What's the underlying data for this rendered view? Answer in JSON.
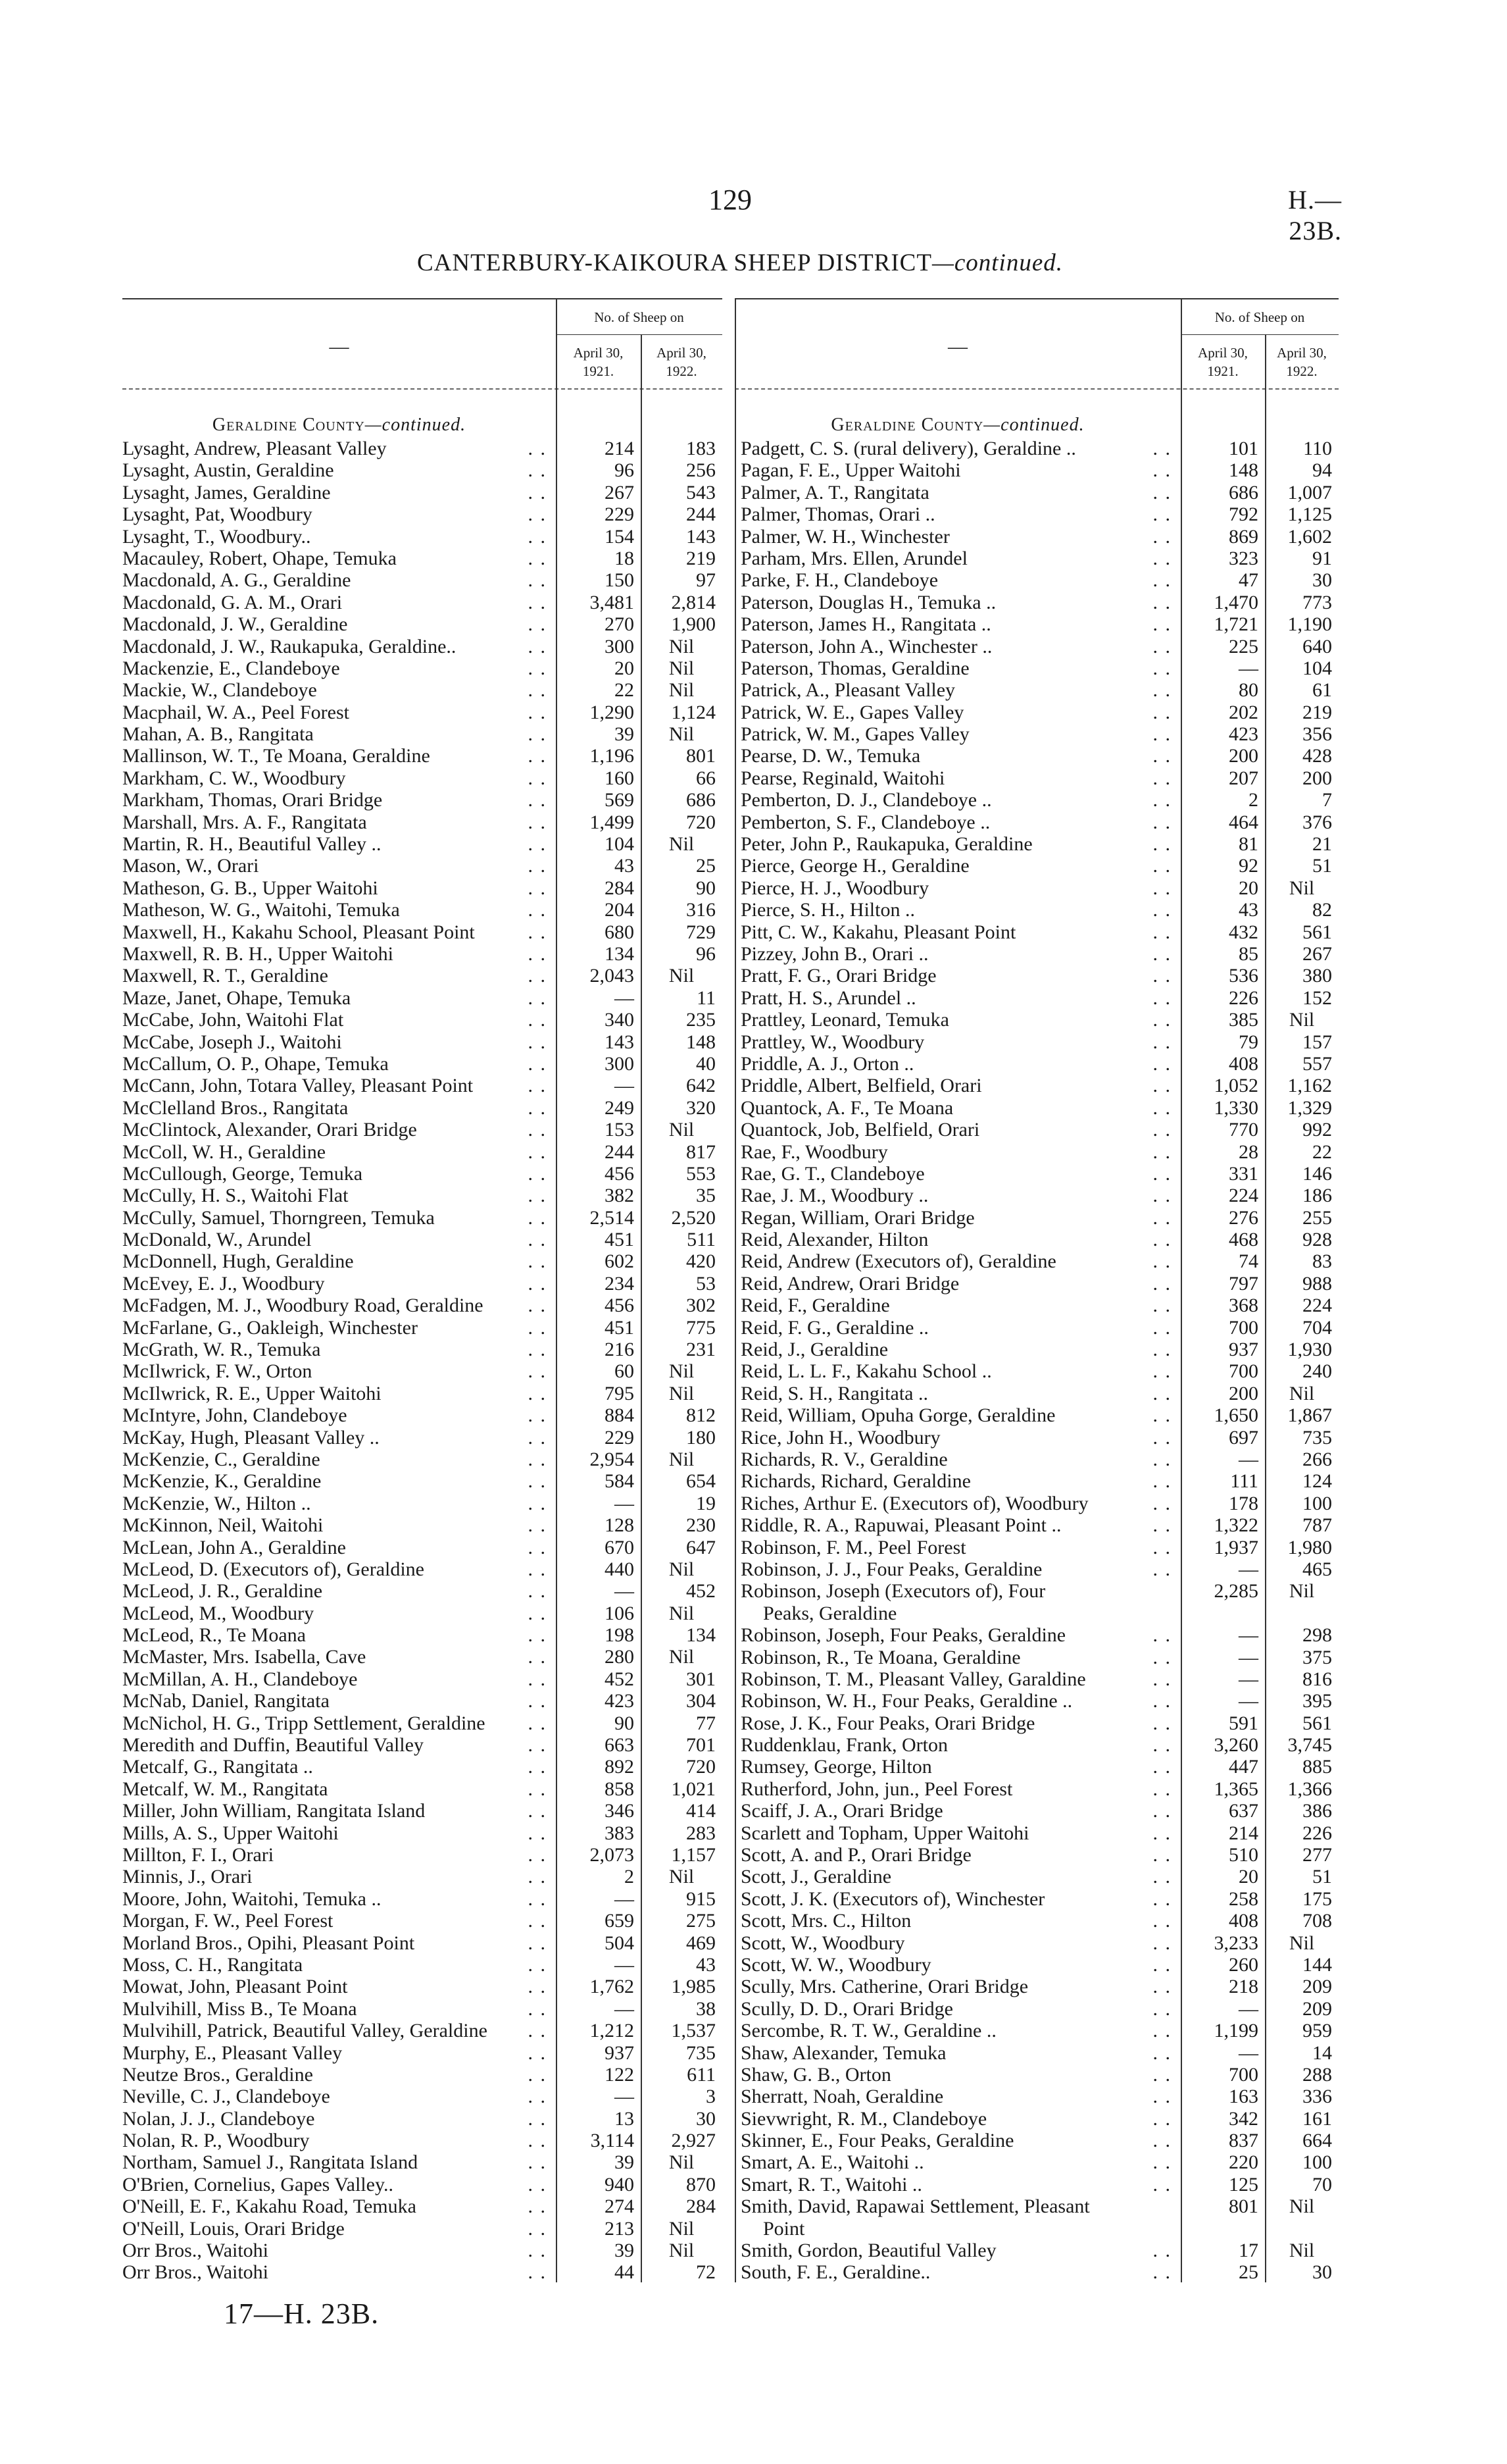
{
  "header": {
    "page_number": "129",
    "document_ref": "H.—23B.",
    "title": "CANTERBURY-KAIKOURA SHEEP DISTRICT",
    "title_suffix": "—continued."
  },
  "table_header": {
    "name_column": "—",
    "group_label": "No. of Sheep on",
    "col1_line1": "April 30,",
    "col1_line2": "1921.",
    "col2_line1": "April 30,",
    "col2_line2": "1922."
  },
  "left": {
    "county_name": "Geraldine County",
    "county_suffix": "—continued.",
    "rows": [
      {
        "name": "Lysaght, Andrew, Pleasant Valley",
        "y1921": "214",
        "y1922": "183"
      },
      {
        "name": "Lysaght, Austin, Geraldine",
        "y1921": "96",
        "y1922": "256"
      },
      {
        "name": "Lysaght, James, Geraldine",
        "y1921": "267",
        "y1922": "543"
      },
      {
        "name": "Lysaght, Pat, Woodbury",
        "y1921": "229",
        "y1922": "244"
      },
      {
        "name": "Lysaght, T., Woodbury..",
        "y1921": "154",
        "y1922": "143"
      },
      {
        "name": "Macauley, Robert, Ohape, Temuka",
        "y1921": "18",
        "y1922": "219"
      },
      {
        "name": "Macdonald, A. G., Geraldine",
        "y1921": "150",
        "y1922": "97"
      },
      {
        "name": "Macdonald, G. A. M., Orari",
        "y1921": "3,481",
        "y1922": "2,814"
      },
      {
        "name": "Macdonald, J. W., Geraldine",
        "y1921": "270",
        "y1922": "1,900"
      },
      {
        "name": "Macdonald, J. W., Raukapuka, Geraldine..",
        "y1921": "300",
        "y1922": "Nil"
      },
      {
        "name": "Mackenzie, E., Clandeboye",
        "y1921": "20",
        "y1922": "Nil"
      },
      {
        "name": "Mackie, W., Clandeboye",
        "y1921": "22",
        "y1922": "Nil"
      },
      {
        "name": "Macphail, W. A., Peel Forest",
        "y1921": "1,290",
        "y1922": "1,124"
      },
      {
        "name": "Mahan, A. B., Rangitata",
        "y1921": "39",
        "y1922": "Nil"
      },
      {
        "name": "Mallinson, W. T., Te Moana, Geraldine",
        "y1921": "1,196",
        "y1922": "801"
      },
      {
        "name": "Markham, C. W., Woodbury",
        "y1921": "160",
        "y1922": "66"
      },
      {
        "name": "Markham, Thomas, Orari Bridge",
        "y1921": "569",
        "y1922": "686"
      },
      {
        "name": "Marshall, Mrs. A. F., Rangitata",
        "y1921": "1,499",
        "y1922": "720"
      },
      {
        "name": "Martin, R. H., Beautiful Valley ..",
        "y1921": "104",
        "y1922": "Nil"
      },
      {
        "name": "Mason, W., Orari",
        "y1921": "43",
        "y1922": "25"
      },
      {
        "name": "Matheson, G. B., Upper Waitohi",
        "y1921": "284",
        "y1922": "90"
      },
      {
        "name": "Matheson, W. G., Waitohi, Temuka",
        "y1921": "204",
        "y1922": "316"
      },
      {
        "name": "Maxwell, H., Kakahu School, Pleasant Point",
        "y1921": "680",
        "y1922": "729"
      },
      {
        "name": "Maxwell, R. B. H., Upper Waitohi",
        "y1921": "134",
        "y1922": "96"
      },
      {
        "name": "Maxwell, R. T., Geraldine",
        "y1921": "2,043",
        "y1922": "Nil"
      },
      {
        "name": "Maze, Janet, Ohape, Temuka",
        "y1921": "—",
        "y1922": "11"
      },
      {
        "name": "McCabe, John, Waitohi Flat",
        "y1921": "340",
        "y1922": "235"
      },
      {
        "name": "McCabe, Joseph J., Waitohi",
        "y1921": "143",
        "y1922": "148"
      },
      {
        "name": "McCallum, O. P., Ohape, Temuka",
        "y1921": "300",
        "y1922": "40"
      },
      {
        "name": "McCann, John, Totara Valley, Pleasant Point",
        "y1921": "—",
        "y1922": "642"
      },
      {
        "name": "McClelland Bros., Rangitata",
        "y1921": "249",
        "y1922": "320"
      },
      {
        "name": "McClintock, Alexander, Orari Bridge",
        "y1921": "153",
        "y1922": "Nil"
      },
      {
        "name": "McColl, W. H., Geraldine",
        "y1921": "244",
        "y1922": "817"
      },
      {
        "name": "McCullough, George, Temuka",
        "y1921": "456",
        "y1922": "553"
      },
      {
        "name": "McCully, H. S., Waitohi Flat",
        "y1921": "382",
        "y1922": "35"
      },
      {
        "name": "McCully, Samuel, Thorngreen, Temuka",
        "y1921": "2,514",
        "y1922": "2,520"
      },
      {
        "name": "McDonald, W., Arundel",
        "y1921": "451",
        "y1922": "511"
      },
      {
        "name": "McDonnell, Hugh, Geraldine",
        "y1921": "602",
        "y1922": "420"
      },
      {
        "name": "McEvey, E. J., Woodbury",
        "y1921": "234",
        "y1922": "53"
      },
      {
        "name": "McFadgen, M. J., Woodbury Road, Geraldine",
        "y1921": "456",
        "y1922": "302"
      },
      {
        "name": "McFarlane, G., Oakleigh, Winchester",
        "y1921": "451",
        "y1922": "775"
      },
      {
        "name": "McGrath, W. R., Temuka",
        "y1921": "216",
        "y1922": "231"
      },
      {
        "name": "McIlwrick, F. W., Orton",
        "y1921": "60",
        "y1922": "Nil"
      },
      {
        "name": "McIlwrick, R. E., Upper Waitohi",
        "y1921": "795",
        "y1922": "Nil"
      },
      {
        "name": "McIntyre, John, Clandeboye",
        "y1921": "884",
        "y1922": "812"
      },
      {
        "name": "McKay, Hugh, Pleasant Valley ..",
        "y1921": "229",
        "y1922": "180"
      },
      {
        "name": "McKenzie, C., Geraldine",
        "y1921": "2,954",
        "y1922": "Nil"
      },
      {
        "name": "McKenzie, K., Geraldine",
        "y1921": "584",
        "y1922": "654"
      },
      {
        "name": "McKenzie, W., Hilton ..",
        "y1921": "—",
        "y1922": "19"
      },
      {
        "name": "McKinnon, Neil, Waitohi",
        "y1921": "128",
        "y1922": "230"
      },
      {
        "name": "McLean, John A., Geraldine",
        "y1921": "670",
        "y1922": "647"
      },
      {
        "name": "McLeod, D. (Executors of), Geraldine",
        "y1921": "440",
        "y1922": "Nil"
      },
      {
        "name": "McLeod, J. R., Geraldine",
        "y1921": "—",
        "y1922": "452"
      },
      {
        "name": "McLeod, M., Woodbury",
        "y1921": "106",
        "y1922": "Nil"
      },
      {
        "name": "McLeod, R., Te Moana",
        "y1921": "198",
        "y1922": "134"
      },
      {
        "name": "McMaster, Mrs. Isabella, Cave",
        "y1921": "280",
        "y1922": "Nil"
      },
      {
        "name": "McMillan, A. H., Clandeboye",
        "y1921": "452",
        "y1922": "301"
      },
      {
        "name": "McNab, Daniel, Rangitata",
        "y1921": "423",
        "y1922": "304"
      },
      {
        "name": "McNichol, H. G., Tripp Settlement, Geraldine",
        "y1921": "90",
        "y1922": "77"
      },
      {
        "name": "Meredith and Duffin, Beautiful Valley",
        "y1921": "663",
        "y1922": "701"
      },
      {
        "name": "Metcalf, G., Rangitata ..",
        "y1921": "892",
        "y1922": "720"
      },
      {
        "name": "Metcalf, W. M., Rangitata",
        "y1921": "858",
        "y1922": "1,021"
      },
      {
        "name": "Miller, John William, Rangitata Island",
        "y1921": "346",
        "y1922": "414"
      },
      {
        "name": "Mills, A. S., Upper Waitohi",
        "y1921": "383",
        "y1922": "283"
      },
      {
        "name": "Millton, F. I., Orari",
        "y1921": "2,073",
        "y1922": "1,157"
      },
      {
        "name": "Minnis, J., Orari",
        "y1921": "2",
        "y1922": "Nil"
      },
      {
        "name": "Moore, John, Waitohi, Temuka ..",
        "y1921": "—",
        "y1922": "915"
      },
      {
        "name": "Morgan, F. W., Peel Forest",
        "y1921": "659",
        "y1922": "275"
      },
      {
        "name": "Morland Bros., Opihi, Pleasant Point",
        "y1921": "504",
        "y1922": "469"
      },
      {
        "name": "Moss, C. H., Rangitata",
        "y1921": "—",
        "y1922": "43"
      },
      {
        "name": "Mowat, John, Pleasant Point",
        "y1921": "1,762",
        "y1922": "1,985"
      },
      {
        "name": "Mulvihill, Miss B., Te Moana",
        "y1921": "—",
        "y1922": "38"
      },
      {
        "name": "Mulvihill, Patrick, Beautiful Valley, Geraldine",
        "y1921": "1,212",
        "y1922": "1,537"
      },
      {
        "name": "Murphy, E., Pleasant Valley",
        "y1921": "937",
        "y1922": "735"
      },
      {
        "name": "Neutze Bros., Geraldine",
        "y1921": "122",
        "y1922": "611"
      },
      {
        "name": "Neville, C. J., Clandeboye",
        "y1921": "—",
        "y1922": "3"
      },
      {
        "name": "Nolan, J. J., Clandeboye",
        "y1921": "13",
        "y1922": "30"
      },
      {
        "name": "Nolan, R. P., Woodbury",
        "y1921": "3,114",
        "y1922": "2,927"
      },
      {
        "name": "Northam, Samuel J., Rangitata Island",
        "y1921": "39",
        "y1922": "Nil"
      },
      {
        "name": "O'Brien, Cornelius, Gapes Valley..",
        "y1921": "940",
        "y1922": "870"
      },
      {
        "name": "O'Neill, E. F., Kakahu Road, Temuka",
        "y1921": "274",
        "y1922": "284"
      },
      {
        "name": "O'Neill, Louis, Orari Bridge",
        "y1921": "213",
        "y1922": "Nil"
      },
      {
        "name": "Orr Bros., Waitohi",
        "y1921": "39",
        "y1922": "Nil"
      },
      {
        "name": "Orr Bros., Waitohi",
        "y1921": "44",
        "y1922": "72"
      }
    ]
  },
  "right": {
    "county_name": "Geraldine County",
    "county_suffix": "—continued.",
    "rows": [
      {
        "name": "Padgett, C. S. (rural delivery), Geraldine ..",
        "y1921": "101",
        "y1922": "110"
      },
      {
        "name": "Pagan, F. E., Upper Waitohi",
        "y1921": "148",
        "y1922": "94"
      },
      {
        "name": "Palmer, A. T., Rangitata",
        "y1921": "686",
        "y1922": "1,007"
      },
      {
        "name": "Palmer, Thomas, Orari ..",
        "y1921": "792",
        "y1922": "1,125"
      },
      {
        "name": "Palmer, W. H., Winchester",
        "y1921": "869",
        "y1922": "1,602"
      },
      {
        "name": "Parham, Mrs. Ellen, Arundel",
        "y1921": "323",
        "y1922": "91"
      },
      {
        "name": "Parke, F. H., Clandeboye",
        "y1921": "47",
        "y1922": "30"
      },
      {
        "name": "Paterson, Douglas H., Temuka ..",
        "y1921": "1,470",
        "y1922": "773"
      },
      {
        "name": "Paterson, James H., Rangitata ..",
        "y1921": "1,721",
        "y1922": "1,190"
      },
      {
        "name": "Paterson, John A., Winchester ..",
        "y1921": "225",
        "y1922": "640"
      },
      {
        "name": "Paterson, Thomas, Geraldine",
        "y1921": "—",
        "y1922": "104"
      },
      {
        "name": "Patrick, A., Pleasant Valley",
        "y1921": "80",
        "y1922": "61"
      },
      {
        "name": "Patrick, W. E., Gapes Valley",
        "y1921": "202",
        "y1922": "219"
      },
      {
        "name": "Patrick, W. M., Gapes Valley",
        "y1921": "423",
        "y1922": "356"
      },
      {
        "name": "Pearse, D. W., Temuka",
        "y1921": "200",
        "y1922": "428"
      },
      {
        "name": "Pearse, Reginald, Waitohi",
        "y1921": "207",
        "y1922": "200"
      },
      {
        "name": "Pemberton, D. J., Clandeboye ..",
        "y1921": "2",
        "y1922": "7"
      },
      {
        "name": "Pemberton, S. F., Clandeboye ..",
        "y1921": "464",
        "y1922": "376"
      },
      {
        "name": "Peter, John P., Raukapuka, Geraldine",
        "y1921": "81",
        "y1922": "21"
      },
      {
        "name": "Pierce, George H., Geraldine",
        "y1921": "92",
        "y1922": "51"
      },
      {
        "name": "Pierce, H. J., Woodbury",
        "y1921": "20",
        "y1922": "Nil"
      },
      {
        "name": "Pierce, S. H., Hilton ..",
        "y1921": "43",
        "y1922": "82"
      },
      {
        "name": "Pitt, C. W., Kakahu, Pleasant Point",
        "y1921": "432",
        "y1922": "561"
      },
      {
        "name": "Pizzey, John B., Orari ..",
        "y1921": "85",
        "y1922": "267"
      },
      {
        "name": "Pratt, F. G., Orari Bridge",
        "y1921": "536",
        "y1922": "380"
      },
      {
        "name": "Pratt, H. S., Arundel ..",
        "y1921": "226",
        "y1922": "152"
      },
      {
        "name": "Prattley, Leonard, Temuka",
        "y1921": "385",
        "y1922": "Nil"
      },
      {
        "name": "Prattley, W., Woodbury",
        "y1921": "79",
        "y1922": "157"
      },
      {
        "name": "Priddle, A. J., Orton ..",
        "y1921": "408",
        "y1922": "557"
      },
      {
        "name": "Priddle, Albert, Belfield, Orari",
        "y1921": "1,052",
        "y1922": "1,162"
      },
      {
        "name": "Quantock, A. F., Te Moana",
        "y1921": "1,330",
        "y1922": "1,329"
      },
      {
        "name": "Quantock, Job, Belfield, Orari",
        "y1921": "770",
        "y1922": "992"
      },
      {
        "name": "Rae, F., Woodbury",
        "y1921": "28",
        "y1922": "22"
      },
      {
        "name": "Rae, G. T., Clandeboye",
        "y1921": "331",
        "y1922": "146"
      },
      {
        "name": "Rae, J. M., Woodbury ..",
        "y1921": "224",
        "y1922": "186"
      },
      {
        "name": "Regan, William, Orari Bridge",
        "y1921": "276",
        "y1922": "255"
      },
      {
        "name": "Reid, Alexander, Hilton",
        "y1921": "468",
        "y1922": "928"
      },
      {
        "name": "Reid, Andrew (Executors of), Geraldine",
        "y1921": "74",
        "y1922": "83"
      },
      {
        "name": "Reid, Andrew, Orari Bridge",
        "y1921": "797",
        "y1922": "988"
      },
      {
        "name": "Reid, F., Geraldine",
        "y1921": "368",
        "y1922": "224"
      },
      {
        "name": "Reid, F. G., Geraldine ..",
        "y1921": "700",
        "y1922": "704"
      },
      {
        "name": "Reid, J., Geraldine",
        "y1921": "937",
        "y1922": "1,930"
      },
      {
        "name": "Reid, L. L. F., Kakahu School ..",
        "y1921": "700",
        "y1922": "240"
      },
      {
        "name": "Reid, S. H., Rangitata ..",
        "y1921": "200",
        "y1922": "Nil"
      },
      {
        "name": "Reid, William, Opuha Gorge, Geraldine",
        "y1921": "1,650",
        "y1922": "1,867"
      },
      {
        "name": "Rice, John H., Woodbury",
        "y1921": "697",
        "y1922": "735"
      },
      {
        "name": "Richards, R. V., Geraldine",
        "y1921": "—",
        "y1922": "266"
      },
      {
        "name": "Richards, Richard, Geraldine",
        "y1921": "111",
        "y1922": "124"
      },
      {
        "name": "Riches, Arthur E. (Executors of), Woodbury",
        "y1921": "178",
        "y1922": "100"
      },
      {
        "name": "Riddle, R. A., Rapuwai, Pleasant Point ..",
        "y1921": "1,322",
        "y1922": "787"
      },
      {
        "name": "Robinson, F. M., Peel Forest",
        "y1921": "1,937",
        "y1922": "1,980"
      },
      {
        "name": "Robinson, J. J., Four Peaks, Geraldine",
        "y1921": "—",
        "y1922": "465"
      },
      {
        "name": "Robinson, Joseph (Executors of), Four",
        "name_line2": "Peaks, Geraldine",
        "y1921": "2,285",
        "y1922": "Nil"
      },
      {
        "name": "Robinson, Joseph, Four Peaks, Geraldine",
        "y1921": "—",
        "y1922": "298"
      },
      {
        "name": "Robinson, R., Te Moana, Geraldine",
        "y1921": "—",
        "y1922": "375"
      },
      {
        "name": "Robinson, T. M., Pleasant Valley, Garaldine",
        "y1921": "—",
        "y1922": "816"
      },
      {
        "name": "Robinson, W. H., Four Peaks, Geraldine ..",
        "y1921": "—",
        "y1922": "395"
      },
      {
        "name": "Rose, J. K., Four Peaks, Orari Bridge",
        "y1921": "591",
        "y1922": "561"
      },
      {
        "name": "Ruddenklau, Frank, Orton",
        "y1921": "3,260",
        "y1922": "3,745"
      },
      {
        "name": "Rumsey, George, Hilton",
        "y1921": "447",
        "y1922": "885"
      },
      {
        "name": "Rutherford, John, jun., Peel Forest",
        "y1921": "1,365",
        "y1922": "1,366"
      },
      {
        "name": "Scaiff, J. A., Orari Bridge",
        "y1921": "637",
        "y1922": "386"
      },
      {
        "name": "Scarlett and Topham, Upper Waitohi",
        "y1921": "214",
        "y1922": "226"
      },
      {
        "name": "Scott, A. and P., Orari Bridge",
        "y1921": "510",
        "y1922": "277"
      },
      {
        "name": "Scott, J., Geraldine",
        "y1921": "20",
        "y1922": "51"
      },
      {
        "name": "Scott, J. K. (Executors of), Winchester",
        "y1921": "258",
        "y1922": "175"
      },
      {
        "name": "Scott, Mrs. C., Hilton",
        "y1921": "408",
        "y1922": "708"
      },
      {
        "name": "Scott, W., Woodbury",
        "y1921": "3,233",
        "y1922": "Nil"
      },
      {
        "name": "Scott, W. W., Woodbury",
        "y1921": "260",
        "y1922": "144"
      },
      {
        "name": "Scully, Mrs. Catherine, Orari Bridge",
        "y1921": "218",
        "y1922": "209"
      },
      {
        "name": "Scully, D. D., Orari Bridge",
        "y1921": "—",
        "y1922": "209"
      },
      {
        "name": "Sercombe, R. T. W., Geraldine ..",
        "y1921": "1,199",
        "y1922": "959"
      },
      {
        "name": "Shaw, Alexander, Temuka",
        "y1921": "—",
        "y1922": "14"
      },
      {
        "name": "Shaw, G. B., Orton",
        "y1921": "700",
        "y1922": "288"
      },
      {
        "name": "Sherratt, Noah, Geraldine",
        "y1921": "163",
        "y1922": "336"
      },
      {
        "name": "Sievwright, R. M., Clandeboye",
        "y1921": "342",
        "y1922": "161"
      },
      {
        "name": "Skinner, E., Four Peaks, Geraldine",
        "y1921": "837",
        "y1922": "664"
      },
      {
        "name": "Smart, A. E., Waitohi ..",
        "y1921": "220",
        "y1922": "100"
      },
      {
        "name": "Smart, R. T., Waitohi ..",
        "y1921": "125",
        "y1922": "70"
      },
      {
        "name": "Smith, David, Rapawai Settlement, Pleasant",
        "name_line2": "Point",
        "y1921": "801",
        "y1922": "Nil"
      },
      {
        "name": "Smith, Gordon, Beautiful Valley",
        "y1921": "17",
        "y1922": "Nil"
      },
      {
        "name": "South, F. E., Geraldine..",
        "y1921": "25",
        "y1922": "30"
      }
    ]
  },
  "footer": {
    "signature": "17—H. 23B."
  }
}
